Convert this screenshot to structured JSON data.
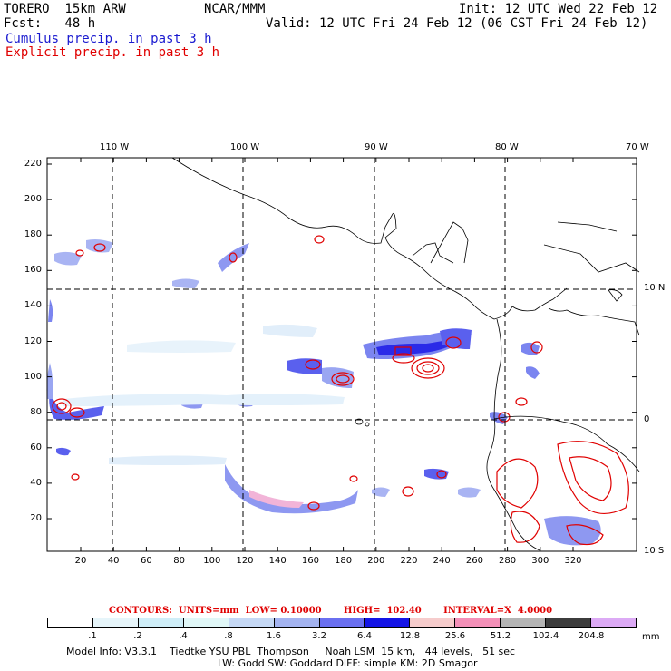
{
  "header": {
    "model": "TORERO  15km ARW",
    "center": "NCAR/MMM",
    "init": "Init: 12 UTC Wed 22 Feb 12",
    "fcst": "Fcst:   48 h",
    "valid": "Valid: 12 UTC Fri 24 Feb 12 (06 CST Fri 24 Feb 12)",
    "cumulus": "Cumulus precip. in past 3 h",
    "explicit": "Explicit precip. in past 3 h"
  },
  "map": {
    "lon_labels": [
      "110 W",
      "100 W",
      "90 W",
      "80 W",
      "70 W"
    ],
    "lat_labels_right": [
      "10 N",
      "0",
      "10 S"
    ],
    "y_ticks": [
      "220",
      "200",
      "180",
      "160",
      "140",
      "120",
      "100",
      "80",
      "60",
      "40",
      "20"
    ],
    "x_ticks": [
      "20",
      "40",
      "60",
      "80",
      "100",
      "120",
      "140",
      "160",
      "180",
      "200",
      "220",
      "240",
      "260",
      "280",
      "300",
      "320"
    ]
  },
  "contours_line": "CONTOURS:  UNITS=mm  LOW= 0.10000       HIGH=  102.40       INTERVAL=X  4.0000",
  "colorbar": {
    "levels": [
      ".1",
      ".2",
      ".4",
      ".8",
      "1.6",
      "3.2",
      "6.4",
      "12.8",
      "25.6",
      "51.2",
      "102.4",
      "204.8"
    ],
    "unit": "mm",
    "colors": [
      "#ffffff",
      "#e6f5fa",
      "#cfeef8",
      "#e0f7f7",
      "#c5d8f5",
      "#a3b3f0",
      "#6a6ff0",
      "#1414e6",
      "#f6cccc",
      "#f490b8",
      "#b4b4b4",
      "#3c3c3c",
      "#dcaaf5"
    ]
  },
  "footer": {
    "line1": "Model Info: V3.3.1    Tiedtke YSU PBL  Thompson     Noah LSM  15 km,   44 levels,   51 sec",
    "line2": "LW: Godd SW: Goddard DIFF: simple KM: 2D Smagor"
  }
}
